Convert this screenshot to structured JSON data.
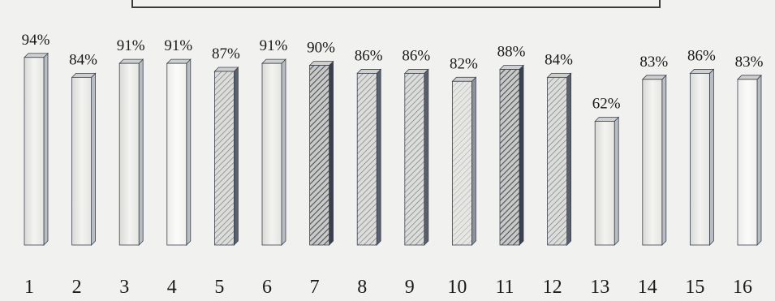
{
  "chart_data": {
    "type": "bar",
    "categories": [
      "1",
      "2",
      "3",
      "4",
      "5",
      "6",
      "7",
      "8",
      "9",
      "10",
      "11",
      "12",
      "13",
      "14",
      "15",
      "16"
    ],
    "values": [
      94,
      84,
      91,
      91,
      87,
      91,
      90,
      86,
      86,
      82,
      88,
      84,
      62,
      83,
      86,
      83
    ],
    "data_labels": [
      "94%",
      "84%",
      "91%",
      "91%",
      "87%",
      "91%",
      "90%",
      "86%",
      "86%",
      "82%",
      "88%",
      "84%",
      "62%",
      "83%",
      "86%",
      "83%"
    ],
    "title": "",
    "xlabel": "",
    "ylabel": "",
    "ylim": [
      0,
      100
    ],
    "grid": false,
    "legend": "none",
    "fill_styles": [
      "light",
      "light",
      "light",
      "white",
      "hatch-light",
      "light",
      "hatch-dark",
      "hatch-light",
      "hatch-light",
      "hatch-faint",
      "hatch-dark",
      "hatch-light",
      "light",
      "light",
      "light",
      "white"
    ],
    "colors": {
      "bar_light": "#e6e6e3",
      "bar_white": "#f4f4f2",
      "bar_edge": "#3b4250",
      "hatch_dark": "#2e3440",
      "text": "#1a1a1a",
      "background": "#f1f1ef"
    }
  }
}
